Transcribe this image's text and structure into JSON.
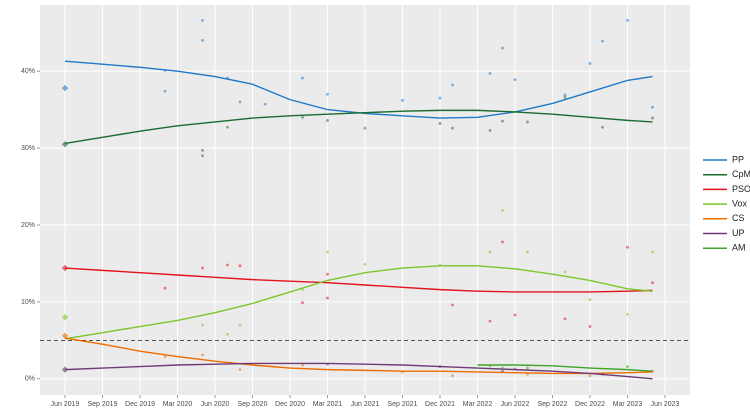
{
  "chart_data": {
    "type": "line",
    "xlim": [
      "2019-04",
      "2023-08"
    ],
    "ylim": [
      -2.1,
      48.6
    ],
    "xticks": [
      {
        "value": "2019-06",
        "label": "Jun 2019"
      },
      {
        "value": "2019-09",
        "label": "Sep 2019"
      },
      {
        "value": "2019-12",
        "label": "Dec 2019"
      },
      {
        "value": "2020-03",
        "label": "Mar 2020"
      },
      {
        "value": "2020-06",
        "label": "Jun 2020"
      },
      {
        "value": "2020-09",
        "label": "Sep 2020"
      },
      {
        "value": "2020-12",
        "label": "Dec 2020"
      },
      {
        "value": "2021-03",
        "label": "Mar 2021"
      },
      {
        "value": "2021-06",
        "label": "Jun 2021"
      },
      {
        "value": "2021-09",
        "label": "Sep 2021"
      },
      {
        "value": "2021-12",
        "label": "Dec 2021"
      },
      {
        "value": "2022-03",
        "label": "Mar 2022"
      },
      {
        "value": "2022-06",
        "label": "Jun 2022"
      },
      {
        "value": "2022-09",
        "label": "Sep 2022"
      },
      {
        "value": "2022-12",
        "label": "Dec 2022"
      },
      {
        "value": "2023-03",
        "label": "Mar 2023"
      },
      {
        "value": "2023-06",
        "label": "Jun 2023"
      }
    ],
    "yticks": [
      {
        "value": 0,
        "label": "0%"
      },
      {
        "value": 10,
        "label": "10%"
      },
      {
        "value": 20,
        "label": "20%"
      },
      {
        "value": 30,
        "label": "30%"
      },
      {
        "value": 40,
        "label": "40%"
      }
    ],
    "grid": true,
    "threshold": 5,
    "legend": "right",
    "election_x": "2019-06",
    "x": [
      "2019-06",
      "2019-09",
      "2019-12",
      "2020-03",
      "2020-06",
      "2020-09",
      "2020-12",
      "2021-03",
      "2021-06",
      "2021-09",
      "2021-12",
      "2022-03",
      "2022-06",
      "2022-09",
      "2022-12",
      "2023-03",
      "2023-05"
    ],
    "series": [
      {
        "name": "PP",
        "color": "#1f78c8",
        "election": 37.8,
        "values": [
          41.3,
          40.9,
          40.5,
          40.0,
          39.3,
          38.3,
          36.3,
          35.0,
          34.5,
          34.2,
          33.9,
          34.0,
          34.7,
          35.8,
          37.3,
          38.8,
          39.3
        ],
        "poll_x": [
          "2020-02",
          "2020-02",
          "2020-05",
          "2020-05",
          "2020-07",
          "2020-08",
          "2020-10",
          "2021-01",
          "2021-03",
          "2021-06",
          "2021-09",
          "2021-12",
          "2022-01",
          "2022-04",
          "2022-05",
          "2022-06",
          "2022-10",
          "2022-12",
          "2023-01",
          "2023-03",
          "2023-05"
        ],
        "poll_values": [
          37.4,
          40.1,
          46.6,
          44.0,
          39.1,
          36.0,
          35.7,
          39.1,
          37.0,
          32.6,
          36.2,
          36.5,
          38.2,
          39.7,
          43.0,
          38.9,
          36.9,
          41.0,
          43.9,
          46.6,
          35.3
        ]
      },
      {
        "name": "CpM",
        "color": "#1a6b2f",
        "election": 30.5,
        "values": [
          30.6,
          31.4,
          32.2,
          32.9,
          33.4,
          33.9,
          34.2,
          34.4,
          34.6,
          34.8,
          34.9,
          34.9,
          34.7,
          34.4,
          34.0,
          33.6,
          33.4
        ],
        "poll_x": [
          "2020-05",
          "2020-05",
          "2020-07",
          "2021-01",
          "2021-03",
          "2021-12",
          "2022-01",
          "2022-04",
          "2022-05",
          "2022-07",
          "2022-10",
          "2023-01",
          "2023-05"
        ],
        "poll_values": [
          29.0,
          29.7,
          32.7,
          34.0,
          33.6,
          33.2,
          32.6,
          32.3,
          33.5,
          33.4,
          36.6,
          32.7,
          33.9
        ]
      },
      {
        "name": "PSOE",
        "color": "#e3121c",
        "election": 14.4,
        "values": [
          14.4,
          14.1,
          13.8,
          13.5,
          13.2,
          12.9,
          12.7,
          12.5,
          12.2,
          11.9,
          11.6,
          11.4,
          11.3,
          11.3,
          11.3,
          11.4,
          11.5
        ],
        "poll_x": [
          "2020-02",
          "2020-05",
          "2020-07",
          "2020-08",
          "2021-01",
          "2021-03",
          "2021-03",
          "2022-01",
          "2022-04",
          "2022-05",
          "2022-06",
          "2022-10",
          "2022-12",
          "2023-03",
          "2023-05"
        ],
        "poll_values": [
          11.8,
          14.4,
          14.8,
          14.7,
          9.9,
          13.6,
          10.5,
          9.6,
          7.5,
          17.8,
          8.3,
          7.8,
          6.8,
          17.1,
          12.5
        ]
      },
      {
        "name": "Vox",
        "color": "#7dc62a",
        "election": 8.0,
        "values": [
          5.2,
          6.0,
          6.8,
          7.6,
          8.6,
          9.8,
          11.3,
          12.8,
          13.8,
          14.4,
          14.7,
          14.7,
          14.3,
          13.6,
          12.8,
          11.7,
          11.4
        ],
        "poll_x": [
          "2020-05",
          "2020-07",
          "2020-08",
          "2021-01",
          "2021-03",
          "2021-06",
          "2021-12",
          "2022-04",
          "2022-05",
          "2022-07",
          "2022-10",
          "2022-12",
          "2023-03",
          "2023-05"
        ],
        "poll_values": [
          7.0,
          5.8,
          7.0,
          11.6,
          16.5,
          14.9,
          14.8,
          16.5,
          21.9,
          16.5,
          13.9,
          10.3,
          8.4,
          16.5
        ]
      },
      {
        "name": "CS",
        "color": "#ef6c00",
        "election": 5.6,
        "values": [
          5.3,
          4.5,
          3.6,
          2.9,
          2.3,
          1.8,
          1.4,
          1.2,
          1.1,
          1.0,
          1.0,
          0.9,
          0.8,
          0.7,
          0.7,
          0.8,
          0.9
        ],
        "poll_x": [
          "2020-02",
          "2020-05",
          "2020-08",
          "2021-01",
          "2021-09",
          "2022-01",
          "2022-07",
          "2022-12",
          "2023-05"
        ],
        "poll_values": [
          2.9,
          3.1,
          1.2,
          1.8,
          0.9,
          0.4,
          0.6,
          0.4,
          1.0
        ]
      },
      {
        "name": "UP",
        "color": "#6e3b78",
        "election": 1.2,
        "values": [
          1.2,
          1.4,
          1.6,
          1.8,
          1.9,
          2.0,
          2.0,
          2.0,
          1.9,
          1.8,
          1.6,
          1.4,
          1.2,
          1.0,
          0.7,
          0.3,
          0.0
        ],
        "poll_x": [
          "2021-03",
          "2021-12",
          "2022-05",
          "2022-06",
          "2023-01"
        ],
        "poll_values": [
          1.9,
          1.6,
          1.0,
          1.3,
          0.6
        ]
      },
      {
        "name": "AM",
        "color": "#3ea52b",
        "values": [
          null,
          null,
          null,
          null,
          null,
          null,
          null,
          null,
          null,
          null,
          null,
          1.8,
          1.8,
          1.7,
          1.4,
          1.2,
          1.0
        ],
        "poll_x": [
          "2022-04",
          "2022-05",
          "2022-07",
          "2023-03"
        ],
        "poll_values": [
          1.7,
          1.4,
          1.4,
          1.6
        ]
      }
    ]
  }
}
